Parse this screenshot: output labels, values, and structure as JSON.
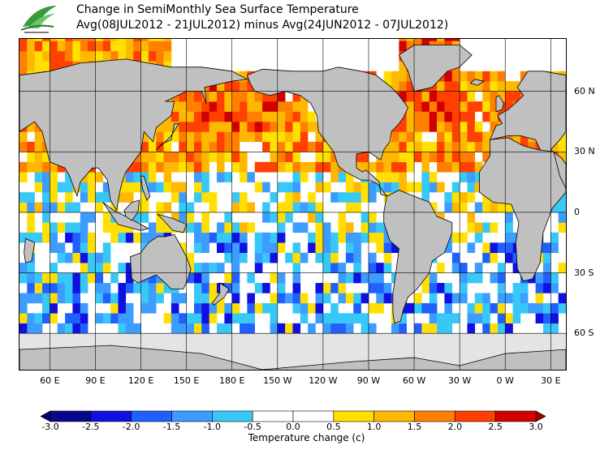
{
  "title": {
    "line1": "Change in SemiMonthly Sea Surface Temperature",
    "line2": "Avg(08JUL2012 - 21JUL2012) minus Avg(24JUN2012 - 07JUL2012)"
  },
  "map": {
    "projection": "equirectangular",
    "lon_range": [
      40,
      400
    ],
    "lat_range": [
      -78,
      86
    ],
    "lon_tick_labels": [
      "60 E",
      "90 E",
      "120 E",
      "150 E",
      "180 E",
      "150 W",
      "120 W",
      "90 W",
      "60 W",
      "30 W",
      "0 W",
      "30 E"
    ],
    "lon_tick_values": [
      60,
      90,
      120,
      150,
      180,
      210,
      240,
      270,
      300,
      330,
      360,
      390
    ],
    "lat_tick_labels": [
      "60 N",
      "30 N",
      "0",
      "30 S",
      "60 S"
    ],
    "lat_tick_values": [
      60,
      30,
      0,
      -30,
      -60
    ],
    "grid": true,
    "land_color": "#c0c0c0",
    "ice_color": "#e4e4e4",
    "ice_edge_lat": -60
  },
  "colorbar": {
    "label": "Temperature change  (c)",
    "ticks": [
      "-3.0",
      "-2.5",
      "-2.0",
      "-1.5",
      "-1.0",
      "-0.5",
      "0.0",
      "0.5",
      "1.0",
      "1.5",
      "2.0",
      "2.5",
      "3.0"
    ],
    "boundaries": [
      -3.0,
      -2.5,
      -2.0,
      -1.5,
      -1.0,
      -0.5,
      0.0,
      0.5,
      1.0,
      1.5,
      2.0,
      2.5,
      3.0
    ],
    "colors": [
      "#08088c",
      "#1010e0",
      "#2060ff",
      "#3c9cff",
      "#38c8f8",
      "#ffffff",
      "#ffffff",
      "#ffe000",
      "#ffb800",
      "#ff8000",
      "#ff4000",
      "#d00000"
    ],
    "under_color": "#000070",
    "over_color": "#a00000"
  }
}
